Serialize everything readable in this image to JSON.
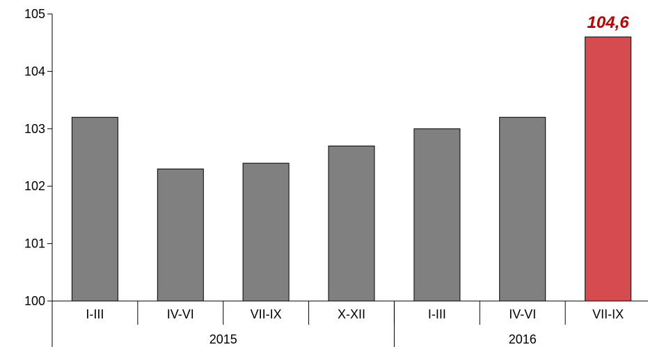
{
  "chart_data": {
    "type": "bar",
    "categories": [
      "I-III",
      "IV-VI",
      "VII-IX",
      "X-XII",
      "I-III",
      "IV-VI",
      "VII-IX"
    ],
    "groups": [
      {
        "label": "2015",
        "start": 0,
        "end": 3
      },
      {
        "label": "2016",
        "start": 4,
        "end": 6
      }
    ],
    "values": [
      103.2,
      102.3,
      102.4,
      102.7,
      103.0,
      103.2,
      104.6
    ],
    "highlight_index": 6,
    "highlight_label": "104,6",
    "ylim": [
      100,
      105
    ],
    "yticks": [
      100,
      101,
      102,
      103,
      104,
      105
    ],
    "title": "",
    "xlabel": "",
    "ylabel": "",
    "grid": false,
    "colors": {
      "bar": "#808080",
      "highlight_bar": "#d64b50",
      "highlight_text": "#c00000",
      "axis": "#000000"
    }
  }
}
